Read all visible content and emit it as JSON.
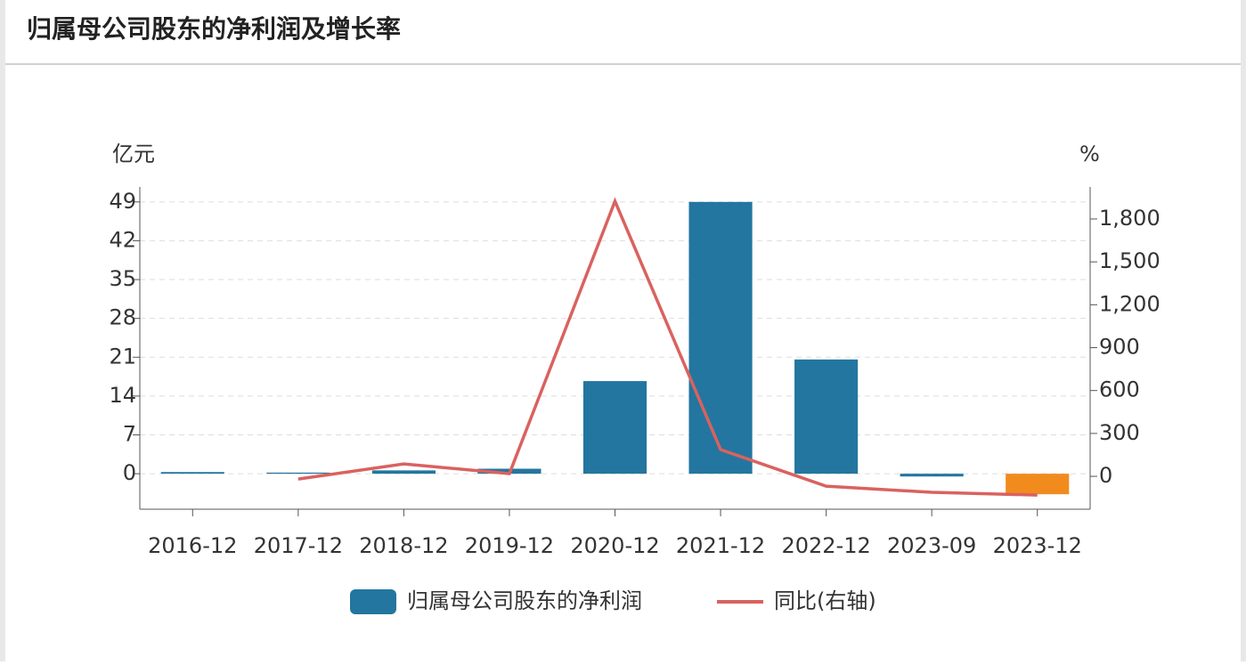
{
  "header": {
    "title": "归属母公司股东的净利润及增长率"
  },
  "chart_data": {
    "type": "bar-line",
    "y_unit": "亿元",
    "y2_unit": "%",
    "categories": [
      "2016-12",
      "2017-12",
      "2018-12",
      "2019-12",
      "2020-12",
      "2021-12",
      "2022-12",
      "2023-09",
      "2023-12"
    ],
    "series": [
      {
        "name": "归属母公司股东的净利润",
        "type": "bar",
        "color": "#23769f",
        "colors": [
          "#23769f",
          "#23769f",
          "#23769f",
          "#23769f",
          "#23769f",
          "#23769f",
          "#23769f",
          "#23769f",
          "#f28b1e"
        ],
        "values": [
          0.3,
          0.2,
          0.6,
          0.9,
          16.7,
          49,
          20.6,
          -0.5,
          -3.7
        ]
      },
      {
        "name": "同比(右轴)",
        "type": "line",
        "axis": "y2",
        "color": "#d9625f",
        "values": [
          null,
          -19,
          87,
          19,
          1924,
          187,
          -69,
          -112,
          -131
        ]
      }
    ],
    "ylim": [
      -6.4,
      51.7
    ],
    "yticks": [
      0,
      7,
      14,
      21,
      28,
      35,
      42,
      49
    ],
    "y2lim": [
      -230,
      2024
    ],
    "y2ticks": [
      0,
      300,
      600,
      900,
      {
        "value": 1200,
        "label": "1,200"
      },
      {
        "value": 1500,
        "label": "1,500"
      },
      {
        "value": 1800,
        "label": "1,800"
      }
    ],
    "grid": true
  }
}
